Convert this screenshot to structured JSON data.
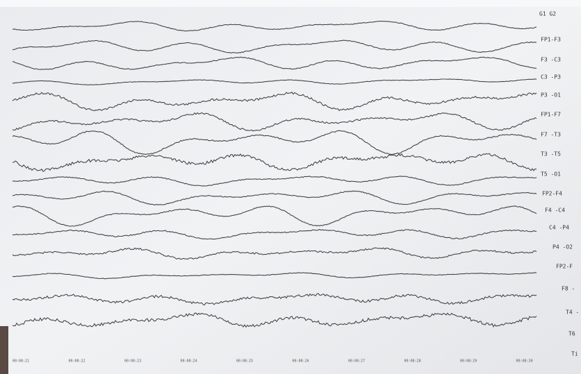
{
  "header": {
    "title": "G1 G2"
  },
  "channels": [
    "FP1-F3",
    "F3 -C3",
    "C3 -P3",
    "P3 -O1",
    "FP1-F7",
    "F7 -T3",
    "T3 -T5",
    "T5 -O1",
    "FP2-F4",
    "F4 -C4",
    "C4 -P4",
    "P4 -O2",
    "FP2-F",
    "F8 -",
    "T4 -",
    "T6"
  ],
  "footer_label": "Ti",
  "times": [
    "00:08:21",
    "00:08:22",
    "00:08:23",
    "00:08:24",
    "00:08:25",
    "00:08:26",
    "00:08:27",
    "00:08:28",
    "00:08:29",
    "00:08:30"
  ]
}
